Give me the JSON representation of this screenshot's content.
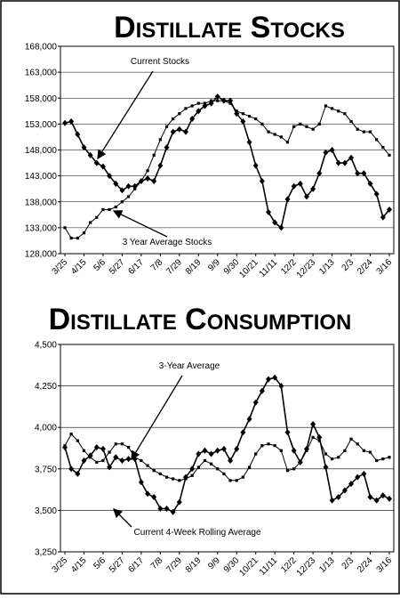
{
  "chart_data": [
    {
      "type": "line",
      "title": "Distillate Stocks",
      "categories": [
        "3/25",
        null,
        null,
        "4/15",
        null,
        null,
        "5/6",
        null,
        null,
        "5/27",
        null,
        null,
        "6/17",
        null,
        null,
        "7/8",
        null,
        null,
        "7/29",
        null,
        null,
        "8/19",
        null,
        null,
        "9/9",
        null,
        null,
        "9/30",
        null,
        null,
        "10/21",
        null,
        null,
        "11/11",
        null,
        null,
        "12/2",
        null,
        null,
        "12/23",
        null,
        null,
        "1/13",
        null,
        null,
        "2/3",
        null,
        null,
        "2/24",
        null,
        null,
        "3/16"
      ],
      "series": [
        {
          "name": "Current Stocks",
          "color": "#000000",
          "marker": "diamond",
          "values": [
            153200,
            153500,
            151000,
            148500,
            147000,
            145500,
            144800,
            143000,
            141500,
            140200,
            141000,
            141000,
            142000,
            142500,
            142000,
            145000,
            148500,
            151500,
            152000,
            151500,
            154000,
            155500,
            156500,
            157000,
            158300,
            157500,
            157500,
            155000,
            153500,
            149500,
            145000,
            142000,
            136000,
            134000,
            133000,
            138500,
            141000,
            141500,
            139000,
            140500,
            143500,
            147500,
            148000,
            145500,
            145500,
            146500,
            143500,
            143500,
            141500,
            139500,
            135000,
            136500
          ]
        },
        {
          "name": "3 Year Average Stocks",
          "color": "#000000",
          "marker": "square",
          "values": [
            133000,
            131000,
            131000,
            132000,
            134000,
            135000,
            136500,
            136500,
            137000,
            138000,
            139000,
            140500,
            142000,
            144000,
            147000,
            150000,
            152500,
            154000,
            155000,
            156000,
            156500,
            157000,
            157000,
            157500,
            157500,
            157500,
            157000,
            155500,
            155000,
            154500,
            154000,
            153000,
            151500,
            151000,
            150500,
            149500,
            152500,
            153000,
            152500,
            152000,
            153000,
            156500,
            156000,
            155500,
            155000,
            153500,
            152000,
            151500,
            151500,
            150000,
            148500,
            147000
          ]
        }
      ],
      "ylim": [
        128000,
        168000
      ],
      "yticks": [
        {
          "value": 128000,
          "label": "128,000"
        },
        {
          "value": 133000,
          "label": "133,000"
        },
        {
          "value": 138000,
          "label": "138,000"
        },
        {
          "value": 143000,
          "label": "143,000"
        },
        {
          "value": 148000,
          "label": "148,000"
        },
        {
          "value": 153000,
          "label": "153,000"
        },
        {
          "value": 158000,
          "label": "158,000"
        },
        {
          "value": 163000,
          "label": "163,000"
        },
        {
          "value": 168000,
          "label": "168,000"
        }
      ],
      "grid": true
    },
    {
      "type": "line",
      "title": "Distillate Consumption",
      "categories": [
        "3/25",
        null,
        null,
        "4/15",
        null,
        null,
        "5/6",
        null,
        null,
        "5/27",
        null,
        null,
        "6/17",
        null,
        null,
        "7/8",
        null,
        null,
        "7/29",
        null,
        null,
        "8/19",
        null,
        null,
        "9/9",
        null,
        null,
        "9/30",
        null,
        null,
        "10/21",
        null,
        null,
        "11/11",
        null,
        null,
        "12/2",
        null,
        null,
        "12/23",
        null,
        null,
        "1/13",
        null,
        null,
        "2/3",
        null,
        null,
        "2/24",
        null,
        null,
        "3/16"
      ],
      "series": [
        {
          "name": "Current 4-Week Rolling Average",
          "color": "#000000",
          "marker": "diamond",
          "values": [
            3880,
            3750,
            3720,
            3800,
            3830,
            3880,
            3870,
            3760,
            3820,
            3800,
            3810,
            3810,
            3670,
            3600,
            3580,
            3510,
            3510,
            3490,
            3550,
            3700,
            3750,
            3840,
            3860,
            3840,
            3860,
            3870,
            3800,
            3870,
            3970,
            4050,
            4150,
            4220,
            4290,
            4300,
            4250,
            3970,
            3860,
            3790,
            3870,
            4020,
            3940,
            3760,
            3560,
            3580,
            3620,
            3660,
            3700,
            3720,
            3580,
            3560,
            3590,
            3570
          ]
        },
        {
          "name": "3-Year Average",
          "color": "#000000",
          "marker": "square",
          "values": [
            3890,
            3960,
            3920,
            3860,
            3820,
            3790,
            3800,
            3850,
            3900,
            3900,
            3880,
            3820,
            3800,
            3770,
            3740,
            3720,
            3700,
            3690,
            3680,
            3690,
            3710,
            3760,
            3800,
            3780,
            3750,
            3720,
            3680,
            3680,
            3700,
            3760,
            3840,
            3890,
            3900,
            3890,
            3860,
            3740,
            3750,
            3790,
            3860,
            3940,
            3920,
            3840,
            3810,
            3820,
            3860,
            3930,
            3900,
            3860,
            3850,
            3800,
            3810,
            3820
          ]
        }
      ],
      "ylim": [
        3250,
        4500
      ],
      "yticks": [
        {
          "value": 3250,
          "label": "3,250"
        },
        {
          "value": 3500,
          "label": "3,500"
        },
        {
          "value": 3750,
          "label": "3,750"
        },
        {
          "value": 4000,
          "label": "4,000"
        },
        {
          "value": 4250,
          "label": "4,250"
        },
        {
          "value": 4500,
          "label": "4,500"
        }
      ],
      "grid": true
    }
  ]
}
